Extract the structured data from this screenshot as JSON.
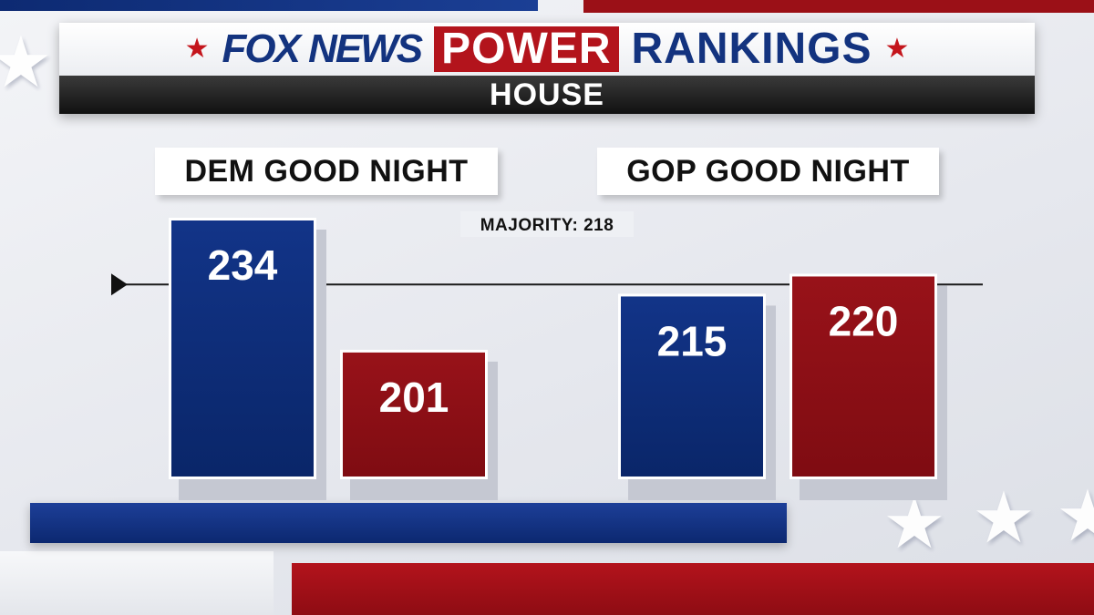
{
  "header": {
    "brand": "FOX NEWS",
    "power": "POWER",
    "rankings": "RANKINGS",
    "subtitle": "HOUSE"
  },
  "colors": {
    "dem": "#0c2d79",
    "gop": "#8e1016",
    "accent_red": "#c4151c",
    "header_blue": "#13337f"
  },
  "chart_data": {
    "type": "bar",
    "title": "",
    "xlabel": "",
    "ylabel": "",
    "groups": [
      {
        "label": "DEM GOOD NIGHT",
        "bars": [
          {
            "party": "dem",
            "value": 234,
            "label": "234"
          },
          {
            "party": "gop",
            "value": 201,
            "label": "201"
          }
        ]
      },
      {
        "label": "GOP GOOD NIGHT",
        "bars": [
          {
            "party": "dem",
            "value": 215,
            "label": "215"
          },
          {
            "party": "gop",
            "value": 220,
            "label": "220"
          }
        ]
      }
    ],
    "reference_line": {
      "value": 218,
      "label": "MAJORITY: 218"
    },
    "ylim": [
      0,
      234
    ],
    "grid": false
  }
}
